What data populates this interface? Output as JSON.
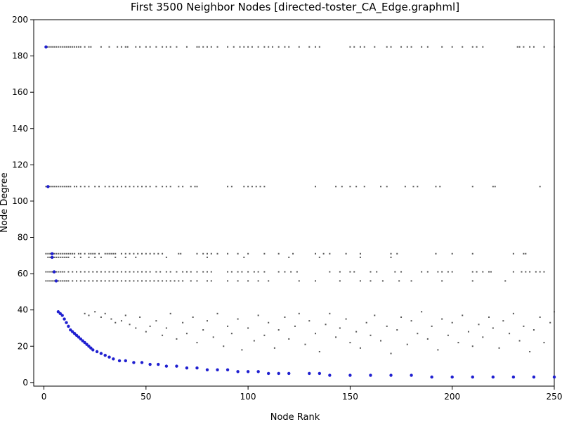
{
  "chart_data": {
    "type": "scatter",
    "title": "First 3500 Neighbor Nodes [directed-toster_CA_Edge.graphml]",
    "xlabel": "Node Rank",
    "ylabel": "Node Degree",
    "xlim": [
      -5,
      250
    ],
    "ylim": [
      -2,
      200
    ],
    "xticks": [
      0,
      50,
      100,
      150,
      200,
      250
    ],
    "yticks": [
      0,
      20,
      40,
      60,
      80,
      100,
      120,
      140,
      160,
      180,
      200
    ],
    "grid": false,
    "legend": "none",
    "series": [
      {
        "role": "neighbor-degree",
        "color": "#555555",
        "bands": [
          {
            "y": 185,
            "x": [
              1,
              2,
              3,
              4,
              5,
              6,
              7,
              8,
              9,
              10,
              11,
              12,
              13,
              14,
              15,
              16,
              17,
              18,
              20,
              22,
              23,
              28,
              32,
              36,
              38,
              40,
              41,
              45,
              47,
              50,
              52,
              55,
              58,
              60,
              62,
              65,
              70,
              75,
              76,
              78,
              80,
              82,
              85,
              90,
              93,
              96,
              98,
              100,
              102,
              105,
              108,
              110,
              112,
              115,
              118,
              120,
              125,
              130,
              133,
              135,
              150,
              152,
              155,
              157,
              162,
              168,
              170,
              175,
              178,
              180,
              185,
              188,
              195,
              200,
              205,
              210,
              212,
              215,
              232,
              233,
              235,
              238,
              240,
              245,
              250
            ]
          },
          {
            "y": 108,
            "x": [
              1,
              2,
              3,
              4,
              5,
              6,
              7,
              8,
              9,
              10,
              11,
              12,
              13,
              15,
              16,
              18,
              20,
              22,
              25,
              27,
              30,
              32,
              34,
              36,
              38,
              40,
              42,
              44,
              46,
              48,
              50,
              52,
              55,
              58,
              60,
              62,
              66,
              68,
              72,
              74,
              75,
              90,
              92,
              98,
              100,
              102,
              104,
              106,
              108,
              133,
              143,
              146,
              150,
              153,
              157,
              165,
              168,
              177,
              181,
              183,
              192,
              194,
              210,
              220,
              221,
              243
            ]
          },
          {
            "y": 71,
            "x": [
              1,
              2,
              3,
              4,
              5,
              6,
              7,
              8,
              9,
              10,
              11,
              12,
              13,
              14,
              15,
              17,
              18,
              20,
              22,
              23,
              24,
              25,
              27,
              30,
              31,
              32,
              33,
              34,
              35,
              38,
              40,
              42,
              44,
              46,
              48,
              50,
              52,
              54,
              56,
              58,
              66,
              67,
              75,
              78,
              80,
              82,
              85,
              90,
              95,
              100,
              108,
              115,
              122,
              133,
              137,
              140,
              148,
              155,
              170,
              173,
              192,
              200,
              210,
              230,
              235,
              236
            ]
          },
          {
            "y": 69,
            "x": [
              2,
              3,
              4,
              5,
              6,
              7,
              8,
              9,
              10,
              11,
              12,
              15,
              18,
              22,
              25,
              28,
              35,
              40,
              45,
              60,
              80,
              98,
              120,
              135,
              155,
              170
            ]
          },
          {
            "y": 61,
            "x": [
              1,
              2,
              3,
              4,
              5,
              6,
              7,
              8,
              9,
              10,
              12,
              14,
              16,
              18,
              20,
              22,
              24,
              26,
              28,
              30,
              32,
              34,
              36,
              38,
              40,
              42,
              44,
              46,
              48,
              50,
              52,
              55,
              57,
              60,
              62,
              65,
              68,
              70,
              72,
              75,
              78,
              80,
              82,
              90,
              92,
              95,
              97,
              100,
              103,
              105,
              108,
              115,
              118,
              121,
              124,
              140,
              145,
              150,
              152,
              160,
              163,
              172,
              175,
              185,
              188,
              193,
              195,
              198,
              200,
              210,
              212,
              215,
              218,
              219,
              230,
              234,
              236,
              238,
              241,
              243,
              245
            ]
          },
          {
            "y": 56,
            "x": [
              1,
              2,
              3,
              4,
              5,
              6,
              7,
              8,
              9,
              10,
              11,
              12,
              14,
              16,
              18,
              20,
              22,
              24,
              26,
              28,
              30,
              32,
              34,
              36,
              38,
              40,
              42,
              44,
              46,
              48,
              50,
              52,
              54,
              56,
              58,
              60,
              62,
              64,
              66,
              68,
              72,
              75,
              80,
              82,
              90,
              95,
              100,
              105,
              110,
              125,
              133,
              145,
              155,
              160,
              166,
              174,
              180,
              195,
              210,
              226
            ]
          }
        ],
        "scatter": [
          {
            "x": 20,
            "y": 38
          },
          {
            "x": 22,
            "y": 37
          },
          {
            "x": 25,
            "y": 39
          },
          {
            "x": 28,
            "y": 36
          },
          {
            "x": 30,
            "y": 38
          },
          {
            "x": 33,
            "y": 35
          },
          {
            "x": 35,
            "y": 33
          },
          {
            "x": 38,
            "y": 34
          },
          {
            "x": 40,
            "y": 37
          },
          {
            "x": 42,
            "y": 32
          },
          {
            "x": 45,
            "y": 30
          },
          {
            "x": 47,
            "y": 36
          },
          {
            "x": 50,
            "y": 28
          },
          {
            "x": 52,
            "y": 31
          },
          {
            "x": 55,
            "y": 34
          },
          {
            "x": 58,
            "y": 26
          },
          {
            "x": 60,
            "y": 30
          },
          {
            "x": 62,
            "y": 38
          },
          {
            "x": 65,
            "y": 24
          },
          {
            "x": 68,
            "y": 33
          },
          {
            "x": 70,
            "y": 27
          },
          {
            "x": 73,
            "y": 36
          },
          {
            "x": 75,
            "y": 22
          },
          {
            "x": 78,
            "y": 29
          },
          {
            "x": 80,
            "y": 34
          },
          {
            "x": 83,
            "y": 25
          },
          {
            "x": 85,
            "y": 38
          },
          {
            "x": 88,
            "y": 20
          },
          {
            "x": 90,
            "y": 31
          },
          {
            "x": 92,
            "y": 27
          },
          {
            "x": 95,
            "y": 35
          },
          {
            "x": 97,
            "y": 18
          },
          {
            "x": 100,
            "y": 30
          },
          {
            "x": 103,
            "y": 23
          },
          {
            "x": 105,
            "y": 37
          },
          {
            "x": 108,
            "y": 26
          },
          {
            "x": 110,
            "y": 33
          },
          {
            "x": 113,
            "y": 19
          },
          {
            "x": 115,
            "y": 29
          },
          {
            "x": 118,
            "y": 36
          },
          {
            "x": 120,
            "y": 24
          },
          {
            "x": 123,
            "y": 31
          },
          {
            "x": 125,
            "y": 38
          },
          {
            "x": 128,
            "y": 21
          },
          {
            "x": 130,
            "y": 34
          },
          {
            "x": 133,
            "y": 27
          },
          {
            "x": 135,
            "y": 17
          },
          {
            "x": 138,
            "y": 32
          },
          {
            "x": 140,
            "y": 38
          },
          {
            "x": 143,
            "y": 25
          },
          {
            "x": 145,
            "y": 30
          },
          {
            "x": 148,
            "y": 35
          },
          {
            "x": 150,
            "y": 22
          },
          {
            "x": 153,
            "y": 28
          },
          {
            "x": 155,
            "y": 19
          },
          {
            "x": 158,
            "y": 33
          },
          {
            "x": 160,
            "y": 26
          },
          {
            "x": 162,
            "y": 37
          },
          {
            "x": 165,
            "y": 23
          },
          {
            "x": 168,
            "y": 31
          },
          {
            "x": 170,
            "y": 16
          },
          {
            "x": 173,
            "y": 29
          },
          {
            "x": 175,
            "y": 36
          },
          {
            "x": 178,
            "y": 21
          },
          {
            "x": 180,
            "y": 34
          },
          {
            "x": 183,
            "y": 27
          },
          {
            "x": 185,
            "y": 39
          },
          {
            "x": 188,
            "y": 24
          },
          {
            "x": 190,
            "y": 31
          },
          {
            "x": 193,
            "y": 18
          },
          {
            "x": 195,
            "y": 35
          },
          {
            "x": 198,
            "y": 26
          },
          {
            "x": 200,
            "y": 33
          },
          {
            "x": 203,
            "y": 22
          },
          {
            "x": 205,
            "y": 37
          },
          {
            "x": 208,
            "y": 28
          },
          {
            "x": 210,
            "y": 20
          },
          {
            "x": 213,
            "y": 32
          },
          {
            "x": 215,
            "y": 25
          },
          {
            "x": 218,
            "y": 36
          },
          {
            "x": 220,
            "y": 30
          },
          {
            "x": 223,
            "y": 19
          },
          {
            "x": 225,
            "y": 34
          },
          {
            "x": 228,
            "y": 27
          },
          {
            "x": 230,
            "y": 38
          },
          {
            "x": 233,
            "y": 23
          },
          {
            "x": 235,
            "y": 31
          },
          {
            "x": 238,
            "y": 17
          },
          {
            "x": 240,
            "y": 29
          },
          {
            "x": 243,
            "y": 36
          },
          {
            "x": 245,
            "y": 22
          },
          {
            "x": 248,
            "y": 33
          },
          {
            "x": 250,
            "y": 39
          }
        ]
      },
      {
        "role": "node-degree",
        "color": "#1f1fd0",
        "points": [
          [
            1,
            185
          ],
          [
            2,
            108
          ],
          [
            4,
            71
          ],
          [
            4,
            69
          ],
          [
            5,
            61
          ],
          [
            6,
            56
          ],
          [
            7,
            39
          ],
          [
            8,
            38
          ],
          [
            9,
            37
          ],
          [
            10,
            35
          ],
          [
            11,
            33
          ],
          [
            12,
            31
          ],
          [
            13,
            29
          ],
          [
            14,
            28
          ],
          [
            15,
            27
          ],
          [
            16,
            26
          ],
          [
            17,
            25
          ],
          [
            18,
            24
          ],
          [
            19,
            23
          ],
          [
            20,
            22
          ],
          [
            21,
            21
          ],
          [
            22,
            20
          ],
          [
            23,
            19
          ],
          [
            24,
            18
          ],
          [
            26,
            17
          ],
          [
            28,
            16
          ],
          [
            30,
            15
          ],
          [
            32,
            14
          ],
          [
            34,
            13
          ],
          [
            37,
            12
          ],
          [
            40,
            12
          ],
          [
            44,
            11
          ],
          [
            48,
            11
          ],
          [
            52,
            10
          ],
          [
            56,
            10
          ],
          [
            60,
            9
          ],
          [
            65,
            9
          ],
          [
            70,
            8
          ],
          [
            75,
            8
          ],
          [
            80,
            7
          ],
          [
            85,
            7
          ],
          [
            90,
            7
          ],
          [
            95,
            6
          ],
          [
            100,
            6
          ],
          [
            105,
            6
          ],
          [
            110,
            5
          ],
          [
            115,
            5
          ],
          [
            120,
            5
          ],
          [
            130,
            5
          ],
          [
            135,
            5
          ],
          [
            140,
            4
          ],
          [
            150,
            4
          ],
          [
            160,
            4
          ],
          [
            170,
            4
          ],
          [
            180,
            4
          ],
          [
            190,
            3
          ],
          [
            200,
            3
          ],
          [
            210,
            3
          ],
          [
            220,
            3
          ],
          [
            230,
            3
          ],
          [
            240,
            3
          ],
          [
            250,
            3
          ]
        ]
      }
    ]
  }
}
